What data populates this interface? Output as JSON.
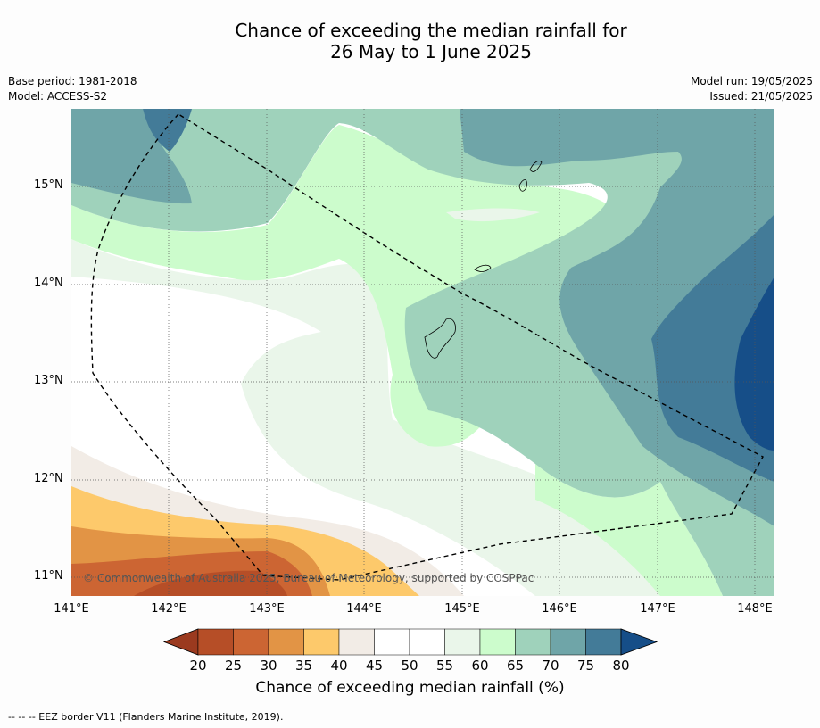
{
  "title_line1": "Chance of exceeding the median rainfall for",
  "title_line2": "26 May to 1 June 2025",
  "base_period": "Base period: 1981-2018",
  "model": "Model: ACCESS-S2",
  "model_run": "Model run: 19/05/2025",
  "issued": "Issued: 21/05/2025",
  "lat_labels": [
    "15°N",
    "14°N",
    "13°N",
    "12°N",
    "11°N"
  ],
  "lon_labels": [
    "141°E",
    "142°E",
    "143°E",
    "144°E",
    "145°E",
    "146°E",
    "147°E",
    "148°E"
  ],
  "copyright": "© Commonwealth of Australia 2025, Bureau of Meteorology, supported by COSPPac",
  "colorbar": {
    "ticks": [
      "20",
      "25",
      "30",
      "35",
      "40",
      "45",
      "50",
      "55",
      "60",
      "65",
      "70",
      "75",
      "80"
    ],
    "colors": [
      "#9b3a1f",
      "#b64e27",
      "#cc6533",
      "#e29445",
      "#fdc96b",
      "#f2ece6",
      "#ffffff",
      "#ffffff",
      "#eaf6ea",
      "#ccfccc",
      "#9fd2bb",
      "#6fa5a8",
      "#437b98",
      "#164e88"
    ],
    "label": "Chance of exceeding median rainfall (%)"
  },
  "footnote": "--  --  -- EEZ border V11 (Flanders Marine Institute, 2019)."
}
